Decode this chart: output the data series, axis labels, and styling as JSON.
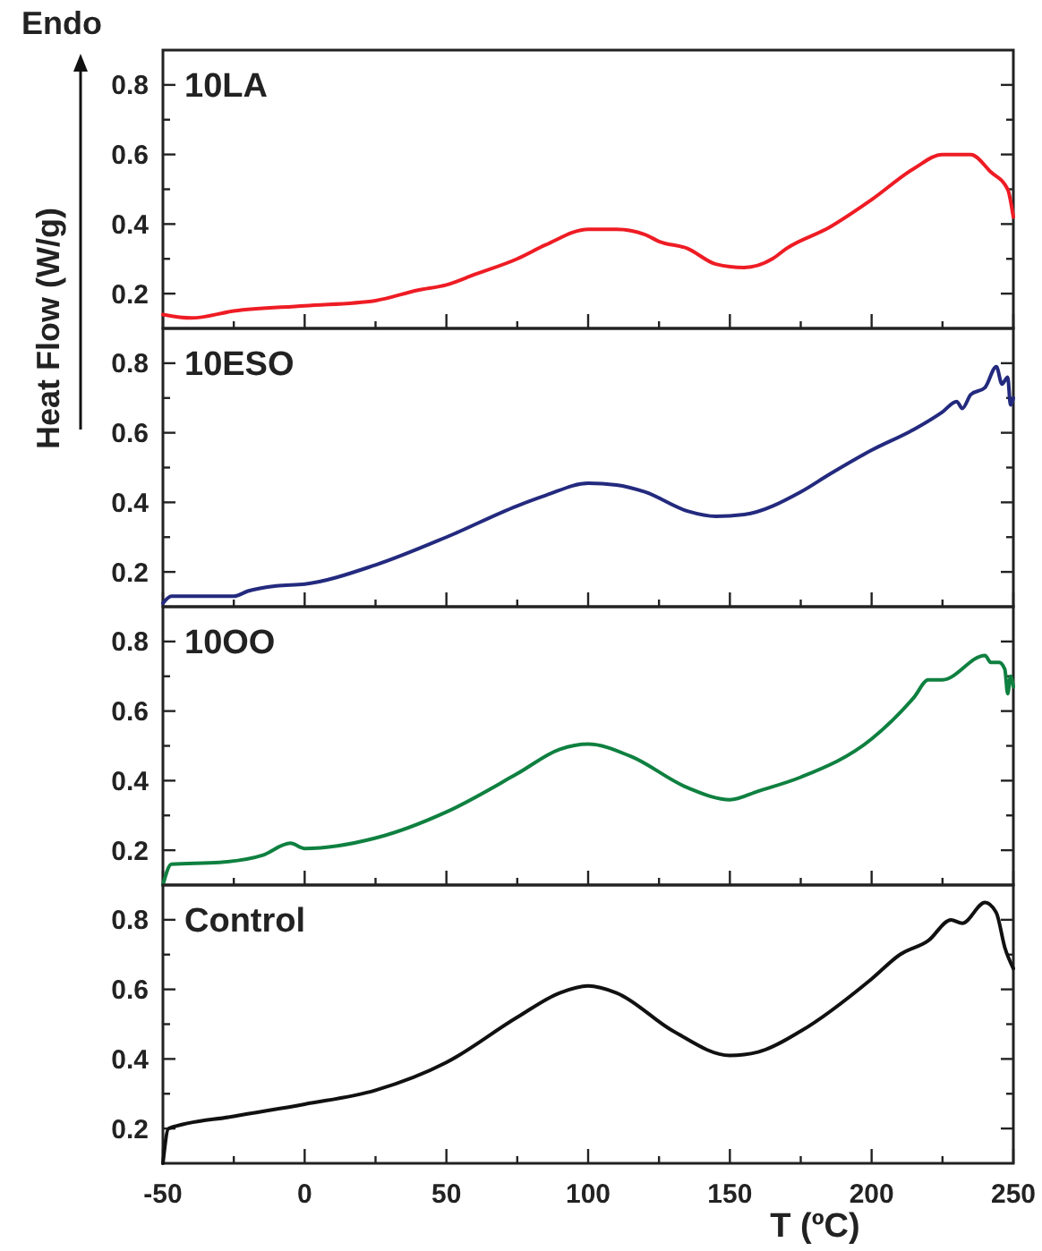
{
  "chart_data": [
    {
      "type": "line",
      "title": "10LA",
      "ylabel": "Heat Flow (W/g)",
      "annotations": [
        "Endo"
      ],
      "tick_labels": "y",
      "xlim": [
        -50,
        250
      ],
      "xticks": [
        -50,
        {
          "value": -25,
          "label": null
        },
        0,
        {
          "value": 25,
          "label": null
        },
        50,
        {
          "value": 75,
          "label": null
        },
        100,
        {
          "value": 125,
          "label": null
        },
        150,
        {
          "value": 175,
          "label": null
        },
        200,
        {
          "value": 225,
          "label": null
        },
        250
      ],
      "ylim": [
        0.1,
        0.9
      ],
      "yticks": [
        0.2,
        {
          "value": 0.3,
          "label": null
        },
        0.4,
        {
          "value": 0.5,
          "label": null
        },
        0.6,
        {
          "value": 0.7,
          "label": null
        },
        0.8
      ],
      "series": [
        {
          "color": "#ee1c24",
          "x": [
            -50,
            -40,
            -25,
            0,
            25,
            40,
            50,
            60,
            75,
            85,
            100,
            110,
            120,
            125,
            135,
            145,
            155,
            165,
            170,
            185,
            200,
            215,
            225,
            235,
            242,
            248,
            250
          ],
          "values": [
            0.14,
            0.13,
            0.15,
            0.165,
            0.18,
            0.21,
            0.225,
            0.255,
            0.3,
            0.34,
            0.385,
            0.385,
            0.37,
            0.35,
            0.33,
            0.285,
            0.275,
            0.3,
            0.33,
            0.39,
            0.47,
            0.56,
            0.6,
            0.6,
            0.55,
            0.5,
            0.42
          ]
        }
      ]
    },
    {
      "type": "line",
      "title": "10ESO",
      "tick_labels": "y",
      "xlim": [
        -50,
        250
      ],
      "xticks": [
        -50,
        {
          "value": -25,
          "label": null
        },
        0,
        {
          "value": 25,
          "label": null
        },
        50,
        {
          "value": 75,
          "label": null
        },
        100,
        {
          "value": 125,
          "label": null
        },
        150,
        {
          "value": 175,
          "label": null
        },
        200,
        {
          "value": 225,
          "label": null
        },
        250
      ],
      "ylim": [
        0.1,
        0.9
      ],
      "yticks": [
        0.2,
        {
          "value": 0.3,
          "label": null
        },
        0.4,
        {
          "value": 0.5,
          "label": null
        },
        0.6,
        {
          "value": 0.7,
          "label": null
        },
        0.8
      ],
      "series": [
        {
          "color": "#232a7e",
          "x": [
            -50,
            -47,
            -25,
            -20,
            -10,
            0,
            25,
            50,
            75,
            85,
            100,
            110,
            120,
            135,
            145,
            155,
            175,
            185,
            200,
            215,
            225,
            230,
            232,
            235,
            240,
            244,
            246,
            248,
            249,
            250
          ],
          "values": [
            0.11,
            0.13,
            0.13,
            0.145,
            0.16,
            0.165,
            0.22,
            0.3,
            0.39,
            0.42,
            0.455,
            0.45,
            0.43,
            0.375,
            0.36,
            0.365,
            0.43,
            0.48,
            0.55,
            0.61,
            0.66,
            0.69,
            0.67,
            0.71,
            0.73,
            0.79,
            0.74,
            0.76,
            0.68,
            0.7
          ]
        }
      ]
    },
    {
      "type": "line",
      "title": "10OO",
      "tick_labels": "y",
      "xlim": [
        -50,
        250
      ],
      "xticks": [
        -50,
        {
          "value": -25,
          "label": null
        },
        0,
        {
          "value": 25,
          "label": null
        },
        50,
        {
          "value": 75,
          "label": null
        },
        100,
        {
          "value": 125,
          "label": null
        },
        150,
        {
          "value": 175,
          "label": null
        },
        200,
        {
          "value": 225,
          "label": null
        },
        250
      ],
      "ylim": [
        0.1,
        0.9
      ],
      "yticks": [
        0.2,
        {
          "value": 0.3,
          "label": null
        },
        0.4,
        {
          "value": 0.5,
          "label": null
        },
        0.6,
        {
          "value": 0.7,
          "label": null
        },
        0.8
      ],
      "series": [
        {
          "color": "#0f8040",
          "x": [
            -50,
            -47,
            -30,
            -15,
            -5,
            0,
            25,
            50,
            75,
            90,
            100,
            115,
            135,
            150,
            160,
            175,
            200,
            215,
            220,
            225,
            240,
            242,
            245,
            247,
            248,
            249,
            250
          ],
          "values": [
            0.1,
            0.16,
            0.165,
            0.185,
            0.22,
            0.205,
            0.235,
            0.31,
            0.42,
            0.49,
            0.505,
            0.47,
            0.38,
            0.345,
            0.37,
            0.41,
            0.52,
            0.64,
            0.69,
            0.69,
            0.76,
            0.74,
            0.74,
            0.72,
            0.65,
            0.7,
            0.67
          ]
        }
      ]
    },
    {
      "type": "line",
      "title": "Control",
      "xlabel": "T (ºC)",
      "xlim": [
        -50,
        250
      ],
      "xticks": [
        -50,
        {
          "value": -25,
          "label": null
        },
        0,
        {
          "value": 25,
          "label": null
        },
        50,
        {
          "value": 75,
          "label": null
        },
        100,
        {
          "value": 125,
          "label": null
        },
        150,
        {
          "value": 175,
          "label": null
        },
        200,
        {
          "value": 225,
          "label": null
        },
        250
      ],
      "ylim": [
        0.1,
        0.9
      ],
      "yticks": [
        0.2,
        {
          "value": 0.3,
          "label": null
        },
        0.4,
        {
          "value": 0.5,
          "label": null
        },
        0.6,
        {
          "value": 0.7,
          "label": null
        },
        0.8
      ],
      "series": [
        {
          "color": "#111111",
          "x": [
            -50,
            -48,
            -25,
            0,
            25,
            50,
            75,
            90,
            100,
            110,
            130,
            150,
            160,
            175,
            200,
            210,
            220,
            228,
            232,
            240,
            244,
            247,
            250
          ],
          "values": [
            0.1,
            0.2,
            0.235,
            0.27,
            0.31,
            0.39,
            0.52,
            0.59,
            0.61,
            0.59,
            0.48,
            0.41,
            0.42,
            0.48,
            0.63,
            0.7,
            0.74,
            0.8,
            0.79,
            0.85,
            0.82,
            0.72,
            0.66
          ]
        }
      ]
    }
  ]
}
